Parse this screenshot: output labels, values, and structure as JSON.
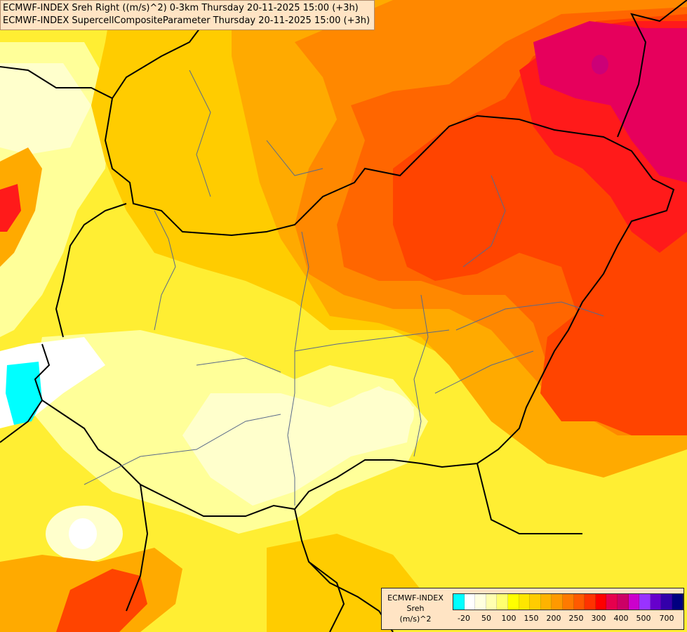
{
  "header": {
    "line1": "ECMWF-INDEX Sreh Right ((m/s)^2) 0-3km Thursday 20-11-2025 15:00 (+3h)",
    "line2": "ECMWF-INDEX SupercellCompositeParameter Thursday 20-11-2025 15:00 (+3h)"
  },
  "legend": {
    "title_lines": [
      "ECMWF-INDEX",
      "Sreh",
      "(m/s)^2"
    ],
    "colors": [
      "#00ffff",
      "#ffffff",
      "#ffffe0",
      "#ffffb0",
      "#ffff70",
      "#ffff00",
      "#ffe600",
      "#ffcc00",
      "#ffb300",
      "#ff9900",
      "#ff7a00",
      "#ff5a00",
      "#ff3300",
      "#ff0000",
      "#e6004d",
      "#cc0066",
      "#cc00cc",
      "#9933ff",
      "#6600cc",
      "#3300aa",
      "#000080"
    ],
    "tick_labels": [
      "-20",
      "50",
      "100",
      "150",
      "200",
      "250",
      "300",
      "400",
      "500",
      "700"
    ]
  },
  "map": {
    "colors": {
      "base": "#ffee33",
      "pale": "#ffffcc",
      "light": "#ffff99",
      "yellow": "#ffff22",
      "gold": "#ffcc00",
      "amber": "#ffaa00",
      "orange": "#ff8800",
      "dark_orange": "#ff6600",
      "red_orange": "#ff4400",
      "red": "#ff1a1a",
      "crimson": "#e6005c",
      "magenta": "#cc0077",
      "cyan": "#00ffff",
      "white": "#ffffff",
      "border": "#000000",
      "river": "#5a6a8a"
    }
  }
}
